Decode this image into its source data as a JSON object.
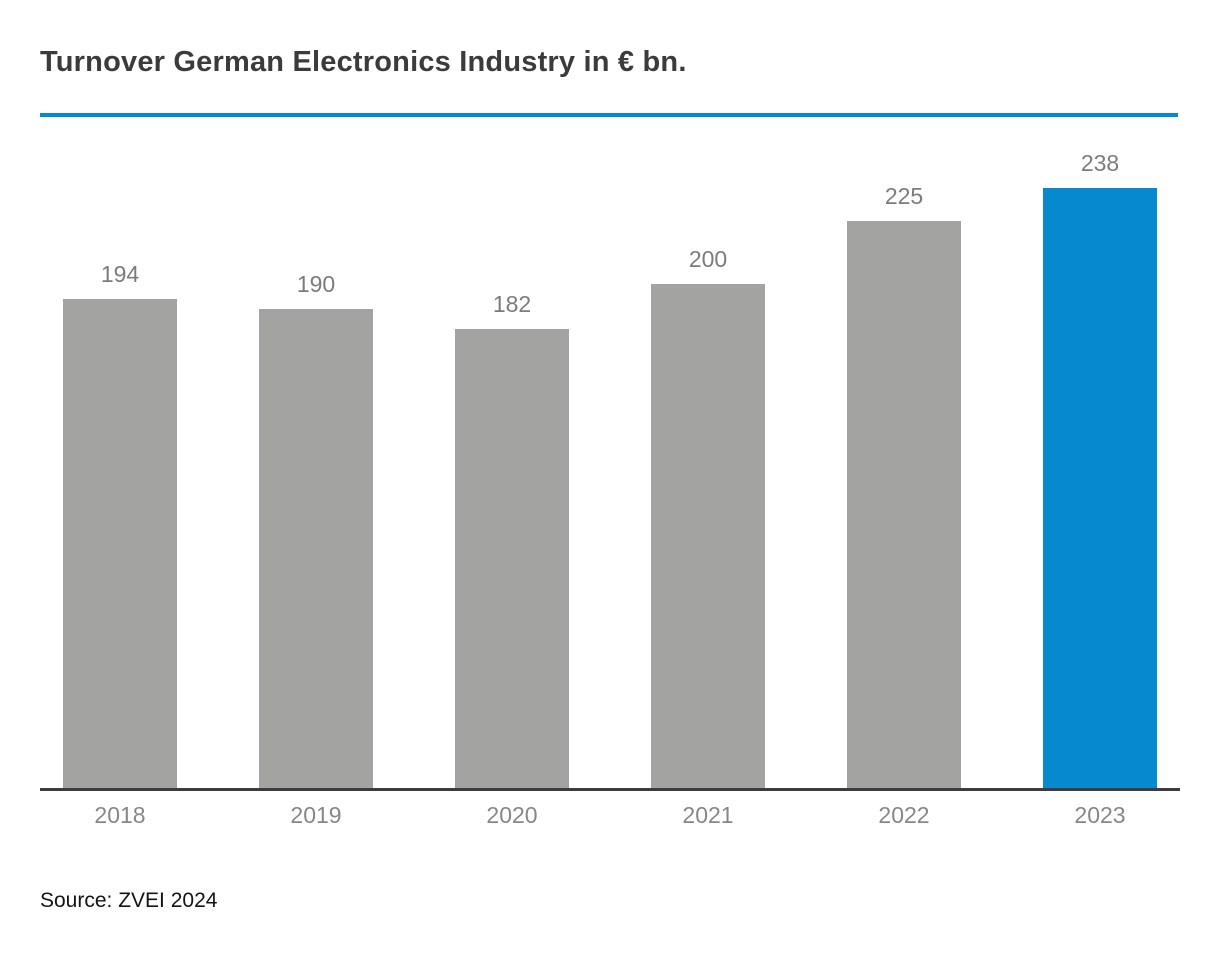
{
  "header": {
    "title": "Turnover German Electronics Industry in € bn."
  },
  "footer": {
    "source": "Source: ZVEI 2024"
  },
  "colors": {
    "accent_blue": "#0689CE",
    "bar_gray": "#A3A3A2",
    "title_text": "#3B3B3A",
    "axis_line": "#3C3C3B",
    "value_label": "#7C7C7B",
    "tick_label": "#878786"
  },
  "chart_data": {
    "type": "bar",
    "title": "Turnover German Electronics Industry in € bn.",
    "categories": [
      "2018",
      "2019",
      "2020",
      "2021",
      "2022",
      "2023"
    ],
    "values": [
      194,
      190,
      182,
      200,
      225,
      238
    ],
    "highlight_index": 5,
    "xlabel": "",
    "ylabel": "",
    "ylim": [
      0,
      258
    ],
    "grid": false,
    "legend": false,
    "data_labels_shown": true,
    "bar_colors": {
      "default": "#A3A3A2",
      "highlight": "#0689CE"
    },
    "source": "Source: ZVEI 2024"
  }
}
